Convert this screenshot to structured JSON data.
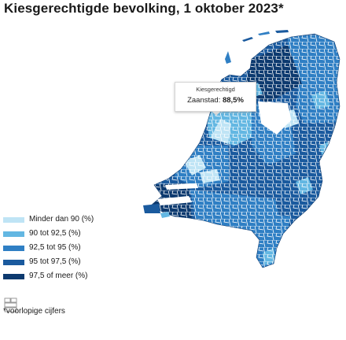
{
  "title": "Kiesgerechtigde bevolking, 1 oktober 2023*",
  "colors": {
    "class1": "#bfe4f5",
    "class2": "#63b7e2",
    "class3": "#2f7fc4",
    "class4": "#1a5a9e",
    "class5": "#0d3a6f",
    "border": "#ffffff"
  },
  "legend": {
    "items": [
      {
        "label": "Minder dan 90 (%)",
        "color": "#bfe4f5"
      },
      {
        "label": "90 tot 92,5 (%)",
        "color": "#63b7e2"
      },
      {
        "label": "92,5 tot 95 (%)",
        "color": "#2f7fc4"
      },
      {
        "label": "95 tot 97,5 (%)",
        "color": "#1a5a9e"
      },
      {
        "label": "97,5 of meer (%)",
        "color": "#0d3a6f"
      }
    ]
  },
  "tooltip": {
    "title": "Kiesgerechtigd",
    "label": "Zaanstad:",
    "value": "88,5%"
  },
  "logo": {
    "icon": "cbs-logo-icon"
  },
  "footnote": "*voorlopige cijfers"
}
